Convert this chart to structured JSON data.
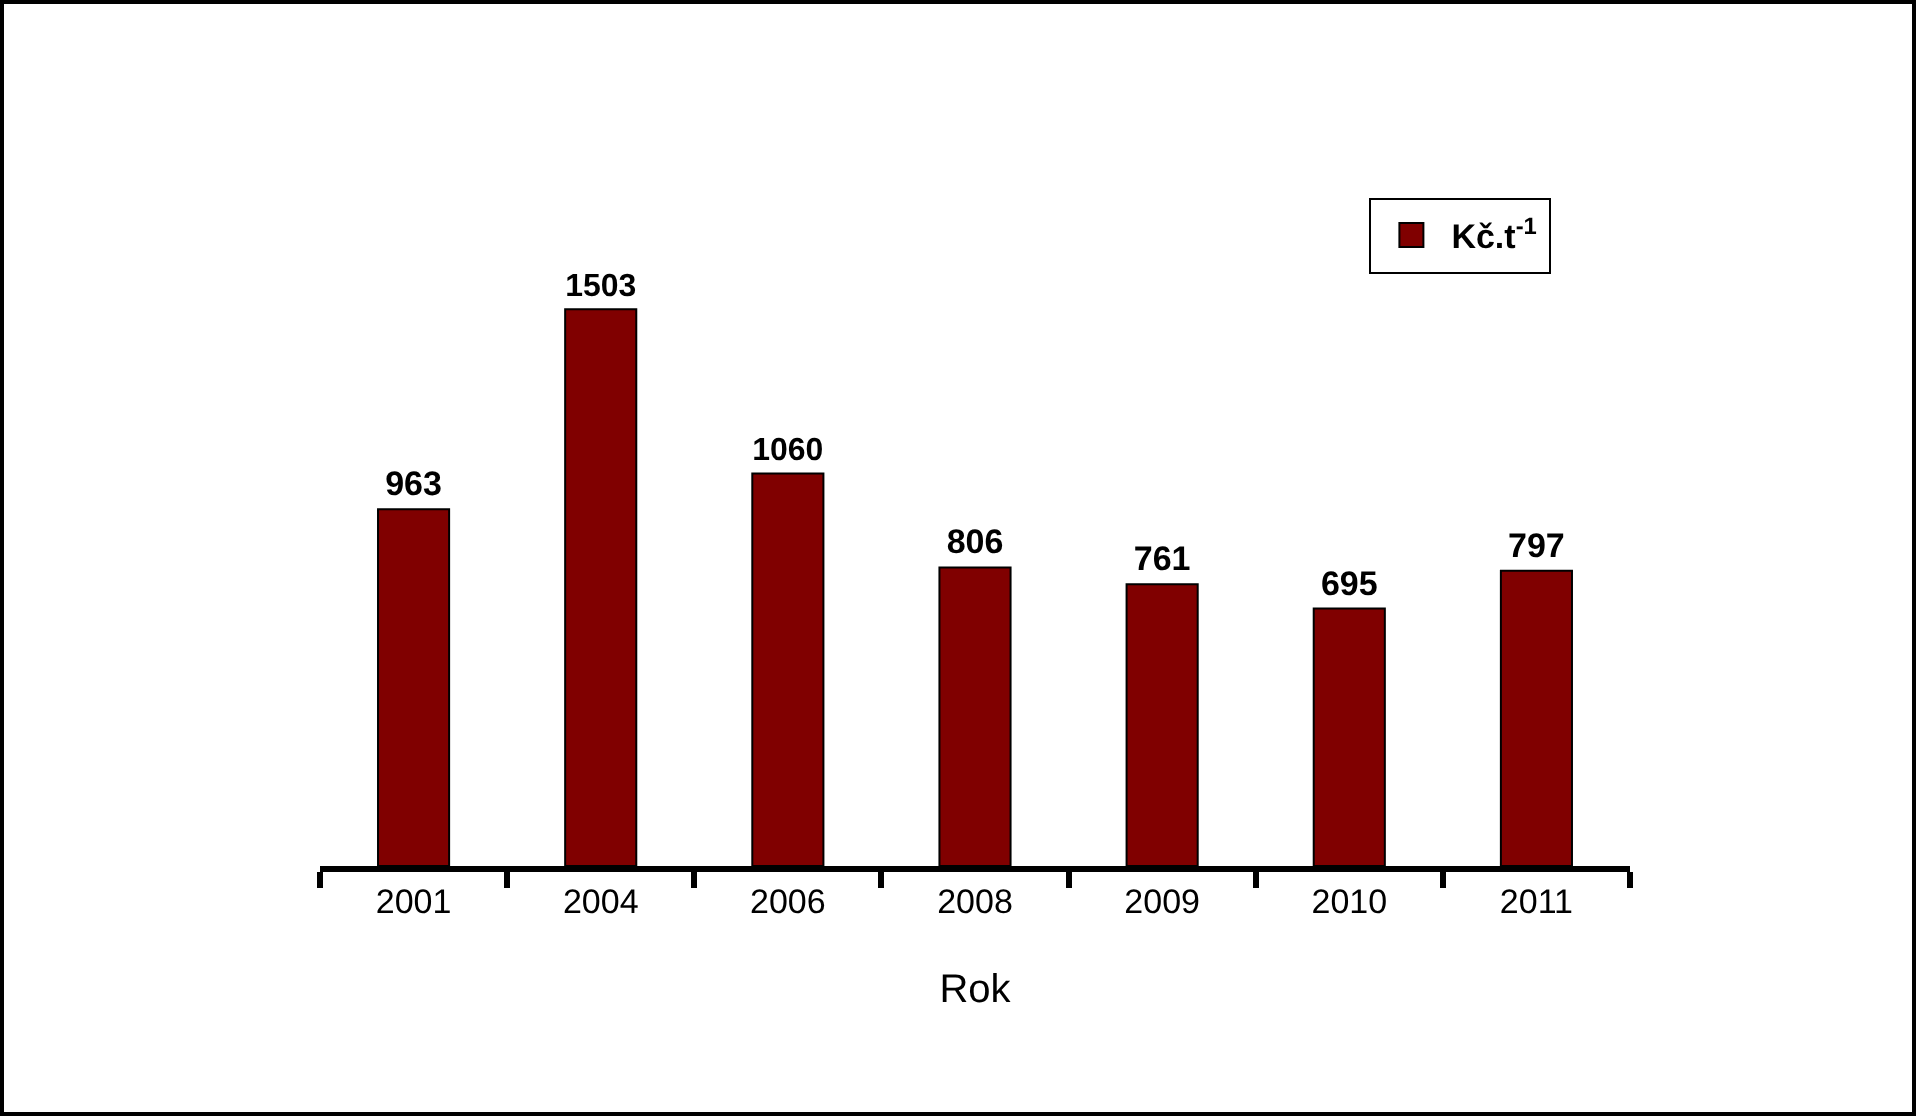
{
  "chart_data": {
    "type": "bar",
    "xlabel": "Rok",
    "categories": [
      "2001",
      "2004",
      "2006",
      "2008",
      "2009",
      "2010",
      "2011"
    ],
    "series": [
      {
        "name": "Kč.t$^{-1}$",
        "color": "#800000",
        "values": [
          963,
          1503,
          1060,
          806,
          761,
          695,
          797
        ]
      }
    ],
    "data_labels": true,
    "legend": "top right"
  }
}
